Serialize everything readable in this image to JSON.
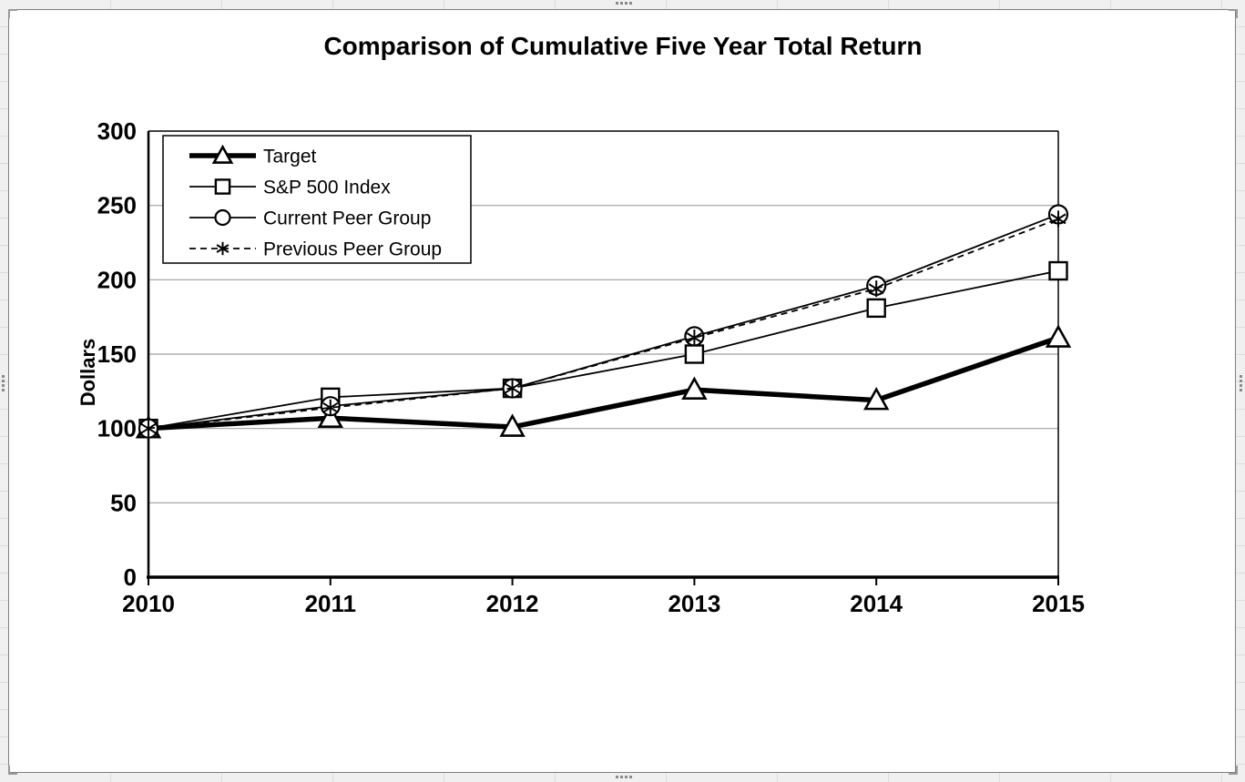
{
  "chart_data": {
    "type": "line",
    "title": "Comparison of Cumulative Five Year Total Return",
    "xlabel": "",
    "ylabel": "Dollars",
    "categories": [
      "2010",
      "2011",
      "2012",
      "2013",
      "2014",
      "2015"
    ],
    "y_ticks": [
      0,
      50,
      100,
      150,
      200,
      250,
      300
    ],
    "ylim": [
      0,
      300
    ],
    "grid": "horizontal",
    "legend_position": "top-left-inside",
    "series": [
      {
        "name": "Target",
        "marker": "triangle",
        "line": "solid-thick",
        "values": [
          100,
          107,
          101,
          126,
          119,
          161
        ]
      },
      {
        "name": "S&P 500 Index",
        "marker": "square",
        "line": "solid-thin",
        "values": [
          100,
          121,
          127,
          150,
          181,
          206
        ]
      },
      {
        "name": "Current Peer Group",
        "marker": "circle",
        "line": "solid-thin",
        "values": [
          100,
          115,
          127,
          162,
          196,
          244
        ]
      },
      {
        "name": "Previous Peer Group",
        "marker": "asterisk",
        "line": "dashed",
        "values": [
          100,
          114,
          127,
          161,
          194,
          241
        ]
      }
    ],
    "colors": {
      "series": "#000000",
      "grid": "#a0a0a0",
      "axis": "#000000",
      "plot_background": "#ffffff"
    }
  }
}
